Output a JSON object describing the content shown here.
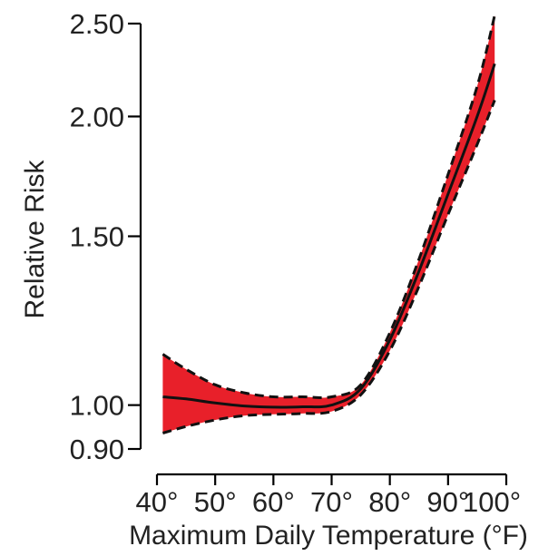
{
  "chart_data": {
    "type": "line",
    "title": "",
    "xlabel": "Maximum Daily Temperature (°F)",
    "ylabel": "Relative Risk",
    "x_scale": "linear",
    "y_scale": "log",
    "xlim": [
      40,
      100
    ],
    "ylim": [
      0.9,
      2.5
    ],
    "x_ticks": [
      {
        "value": 40,
        "label": "40°"
      },
      {
        "value": 50,
        "label": "50°"
      },
      {
        "value": 60,
        "label": "60°"
      },
      {
        "value": 70,
        "label": "70°"
      },
      {
        "value": 80,
        "label": "80°"
      },
      {
        "value": 90,
        "label": "90°"
      },
      {
        "value": 100,
        "label": "100°"
      }
    ],
    "y_ticks": [
      {
        "value": 0.9,
        "label": "0.90"
      },
      {
        "value": 1.0,
        "label": "1.00"
      },
      {
        "value": 1.5,
        "label": "1.50"
      },
      {
        "value": 2.0,
        "label": "2.00"
      },
      {
        "value": 2.5,
        "label": "2.50"
      }
    ],
    "grid": false,
    "legend": "none",
    "colors": {
      "confidence_band": "#e8202a",
      "estimate_line": "#111111",
      "bound_lines": "#111111",
      "axes": "#000000",
      "text": "#222222"
    },
    "x": [
      41,
      45,
      50,
      55,
      60,
      65,
      70,
      75,
      80,
      85,
      90,
      95,
      98
    ],
    "series": [
      {
        "role": "estimate",
        "style": "solid",
        "values": [
          1.02,
          1.015,
          1.005,
          0.998,
          0.995,
          0.996,
          1.0,
          1.04,
          1.17,
          1.38,
          1.66,
          2.0,
          2.27
        ]
      },
      {
        "role": "upper_bound",
        "style": "dashed",
        "values": [
          1.13,
          1.09,
          1.05,
          1.03,
          1.02,
          1.02,
          1.02,
          1.05,
          1.19,
          1.42,
          1.74,
          2.15,
          2.55
        ]
      },
      {
        "role": "lower_bound",
        "style": "dashed",
        "values": [
          0.935,
          0.95,
          0.965,
          0.975,
          0.978,
          0.98,
          0.985,
          1.025,
          1.14,
          1.33,
          1.58,
          1.87,
          2.08
        ]
      }
    ]
  }
}
